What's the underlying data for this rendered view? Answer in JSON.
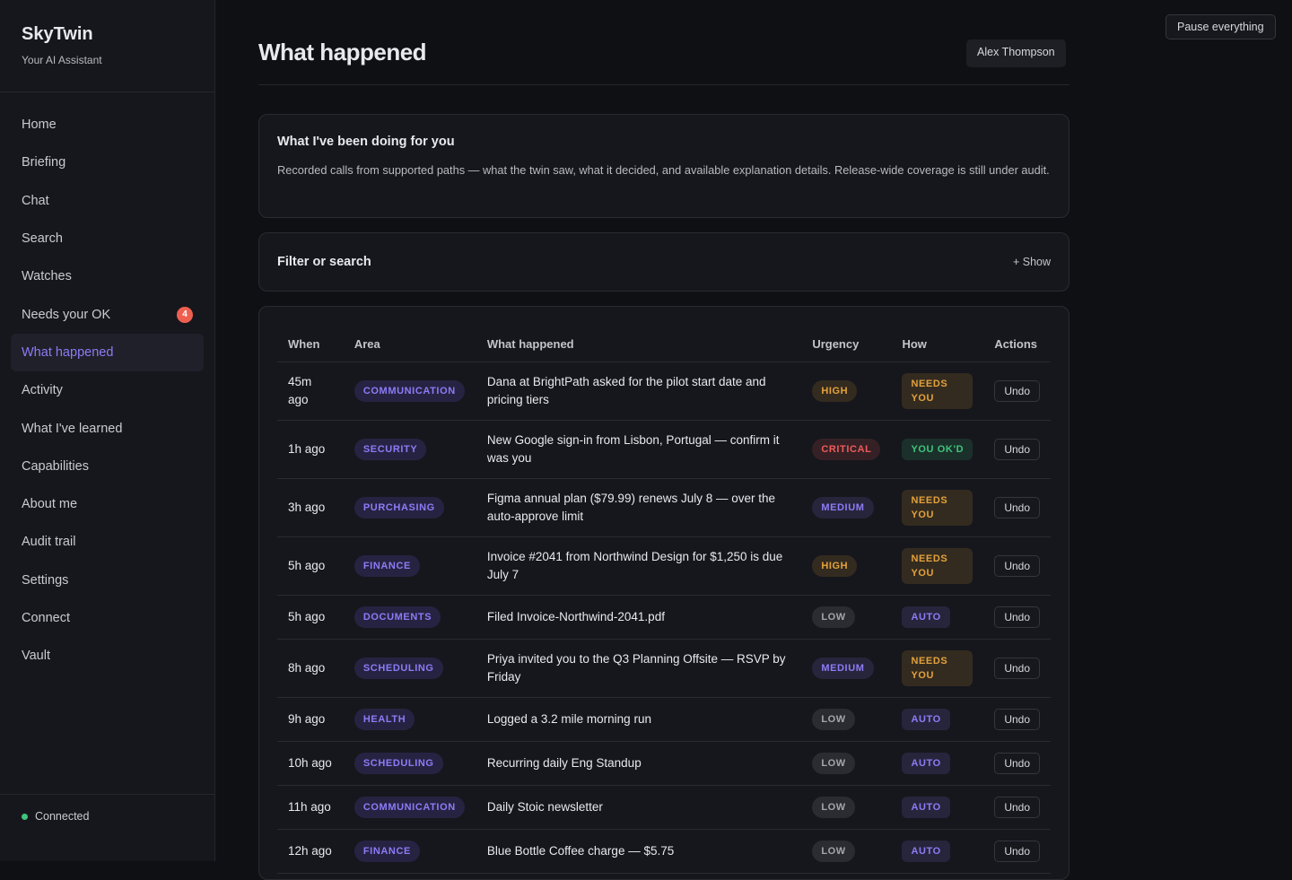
{
  "sidebar": {
    "brand": "SkyTwin",
    "tagline": "Your AI Assistant",
    "nav": [
      "Home",
      "Briefing",
      "Chat",
      "Search",
      "Watches",
      "Needs your OK",
      "What happened",
      "Activity",
      "What I've learned",
      "Capabilities",
      "About me",
      "Audit trail",
      "Settings",
      "Connect",
      "Vault"
    ],
    "badge": {
      "item": 5,
      "text": "4"
    },
    "active": 6,
    "status": "Connected"
  },
  "top_button": "Pause everything",
  "header": {
    "title": "What happened",
    "user": "Alex Thompson"
  },
  "intro": {
    "title": "What I've been doing for you",
    "text": "Recorded calls from supported paths — what the twin saw, what it decided, and available explanation details. Release-wide coverage is still under audit."
  },
  "filter": {
    "title": "Filter or search",
    "toggle": "+ Show"
  },
  "table": {
    "columns": [
      "When",
      "Area",
      "What happened",
      "Urgency",
      "How",
      "Actions"
    ],
    "rows": [
      [
        "45m ago",
        "COMMUNICATION",
        "Dana at BrightPath asked for the pilot start date and pricing tiers",
        {
          "label": "HIGH",
          "color": "#e3a23b"
        },
        {
          "label": "NEEDS YOU",
          "color": "#e3a23b"
        },
        "Undo"
      ],
      [
        "1h ago",
        "SECURITY",
        "New Google sign-in from Lisbon, Portugal — confirm it was you",
        {
          "label": "CRITICAL",
          "color": "#ee5b5b"
        },
        {
          "label": "YOU OK'D",
          "color": "#3fc47e"
        },
        "Undo"
      ],
      [
        "3h ago",
        "PURCHASING",
        "Figma annual plan ($79.99) renews July 8 — over the auto-approve limit",
        {
          "label": "MEDIUM",
          "color": "#8b7cf6"
        },
        {
          "label": "NEEDS YOU",
          "color": "#e3a23b"
        },
        "Undo"
      ],
      [
        "5h ago",
        "FINANCE",
        "Invoice #2041 from Northwind Design for $1,250 is due July 7",
        {
          "label": "HIGH",
          "color": "#e3a23b"
        },
        {
          "label": "NEEDS YOU",
          "color": "#e3a23b"
        },
        "Undo"
      ],
      [
        "5h ago",
        "DOCUMENTS",
        "Filed Invoice-Northwind-2041.pdf",
        {
          "label": "LOW",
          "color": "#a3a6ad"
        },
        {
          "label": "AUTO",
          "color": "#8b7cf6"
        },
        "Undo"
      ],
      [
        "8h ago",
        "SCHEDULING",
        "Priya invited you to the Q3 Planning Offsite — RSVP by Friday",
        {
          "label": "MEDIUM",
          "color": "#8b7cf6"
        },
        {
          "label": "NEEDS YOU",
          "color": "#e3a23b"
        },
        "Undo"
      ],
      [
        "9h ago",
        "HEALTH",
        "Logged a 3.2 mile morning run",
        {
          "label": "LOW",
          "color": "#a3a6ad"
        },
        {
          "label": "AUTO",
          "color": "#8b7cf6"
        },
        "Undo"
      ],
      [
        "10h ago",
        "SCHEDULING",
        "Recurring daily Eng Standup",
        {
          "label": "LOW",
          "color": "#a3a6ad"
        },
        {
          "label": "AUTO",
          "color": "#8b7cf6"
        },
        "Undo"
      ],
      [
        "11h ago",
        "COMMUNICATION",
        "Daily Stoic newsletter",
        {
          "label": "LOW",
          "color": "#a3a6ad"
        },
        {
          "label": "AUTO",
          "color": "#8b7cf6"
        },
        "Undo"
      ],
      [
        "12h ago",
        "FINANCE",
        "Blue Bottle Coffee charge — $5.75",
        {
          "label": "LOW",
          "color": "#a3a6ad"
        },
        {
          "label": "AUTO",
          "color": "#8b7cf6"
        },
        "Undo"
      ]
    ]
  }
}
